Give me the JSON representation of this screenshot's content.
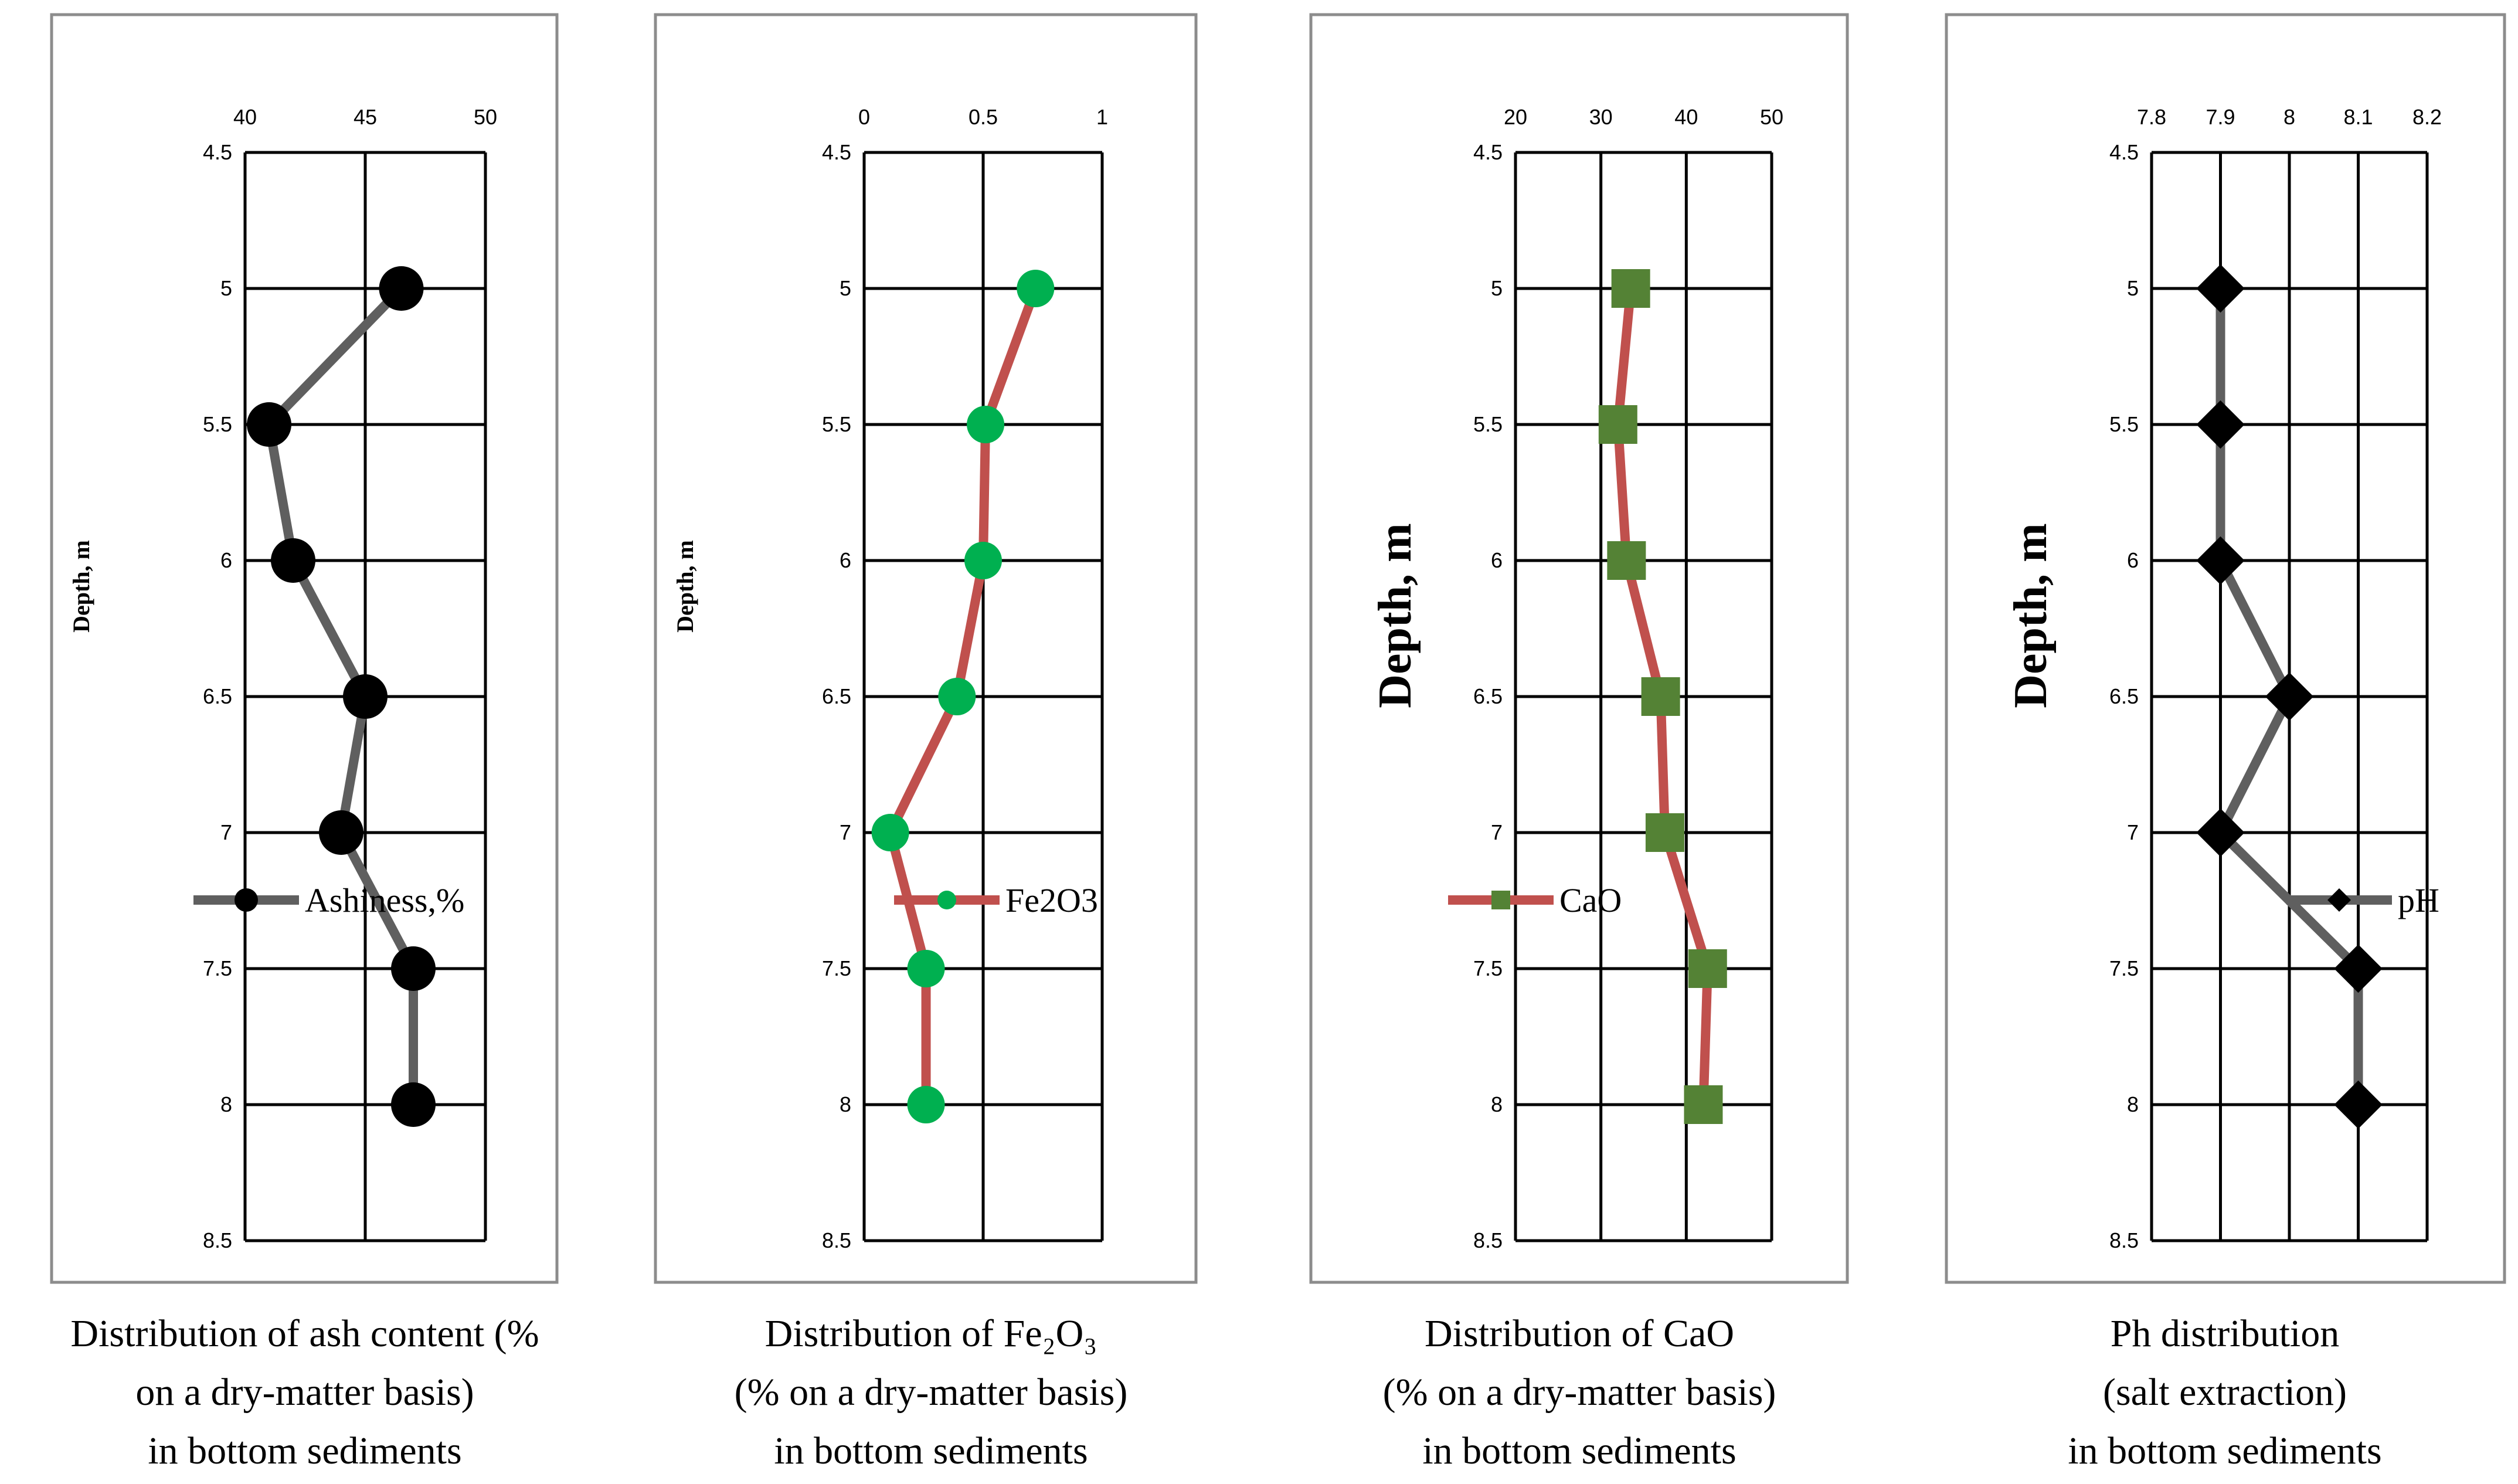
{
  "chart_data": [
    {
      "type": "line",
      "series_name": "Ashiness,%",
      "x_ticks": [
        "40",
        "45",
        "50"
      ],
      "xlim": [
        40,
        50
      ],
      "y_ticks": [
        "4.5",
        "5",
        "5.5",
        "6",
        "6.5",
        "7",
        "7.5",
        "8",
        "8.5"
      ],
      "ylim": [
        4.5,
        8.5
      ],
      "ylabel": "Depth, m",
      "ylabel_style": "small",
      "marker": "circle",
      "line_color": "#5f5f5f",
      "marker_color": "#000000",
      "depth": [
        5,
        5.5,
        6,
        6.5,
        7,
        7.5,
        8
      ],
      "values": [
        46.5,
        41,
        42,
        45,
        44,
        47,
        47
      ],
      "caption": [
        "Distribution of ash content (%",
        "on a dry-matter basis)",
        "in bottom sediments"
      ]
    },
    {
      "type": "line",
      "series_name": "Fe2O3",
      "x_ticks": [
        "0",
        "0.5",
        "1"
      ],
      "xlim": [
        0,
        1
      ],
      "y_ticks": [
        "4.5",
        "5",
        "5.5",
        "6",
        "6.5",
        "7",
        "7.5",
        "8",
        "8.5"
      ],
      "ylim": [
        4.5,
        8.5
      ],
      "ylabel": "Depth, m",
      "ylabel_style": "small",
      "marker": "circle",
      "line_color": "#c0504d",
      "marker_color": "#00b050",
      "depth": [
        5,
        5.5,
        6,
        6.5,
        7,
        7.5,
        8
      ],
      "values": [
        0.72,
        0.51,
        0.5,
        0.39,
        0.11,
        0.26,
        0.26
      ],
      "caption": [
        "Distribution of Fe₂O₃",
        "(% on a dry-matter basis)",
        "in bottom sediments"
      ]
    },
    {
      "type": "line",
      "series_name": "CaO",
      "x_ticks": [
        "20",
        "30",
        "40",
        "50"
      ],
      "xlim": [
        20,
        50
      ],
      "y_ticks": [
        "4.5",
        "5",
        "5.5",
        "6",
        "6.5",
        "7",
        "7.5",
        "8",
        "8.5"
      ],
      "ylim": [
        4.5,
        8.5
      ],
      "ylabel": "Depth, m",
      "ylabel_style": "big",
      "marker": "square",
      "line_color": "#c0504d",
      "marker_color": "#548235",
      "depth": [
        5,
        5.5,
        6,
        6.5,
        7,
        7.5,
        8
      ],
      "values": [
        33.5,
        32,
        33,
        37,
        37.5,
        42.5,
        42
      ],
      "caption": [
        "Distribution of CaO",
        "(% on a dry-matter basis)",
        "in bottom sediments"
      ]
    },
    {
      "type": "line",
      "series_name": "pH",
      "x_ticks": [
        "7.8",
        "7.9",
        "8",
        "8.1",
        "8.2"
      ],
      "xlim": [
        7.8,
        8.2
      ],
      "y_ticks": [
        "4.5",
        "5",
        "5.5",
        "6",
        "6.5",
        "7",
        "7.5",
        "8",
        "8.5"
      ],
      "ylim": [
        4.5,
        8.5
      ],
      "ylabel": "Depth, m",
      "ylabel_style": "big",
      "marker": "diamond",
      "line_color": "#5f5f5f",
      "marker_color": "#000000",
      "depth": [
        5,
        5.5,
        6,
        6.5,
        7,
        7.5,
        8
      ],
      "values": [
        7.9,
        7.9,
        7.9,
        8.0,
        7.9,
        8.1,
        8.1
      ],
      "caption": [
        "Ph distribution",
        "(salt extraction)",
        "in bottom sediments"
      ]
    }
  ]
}
